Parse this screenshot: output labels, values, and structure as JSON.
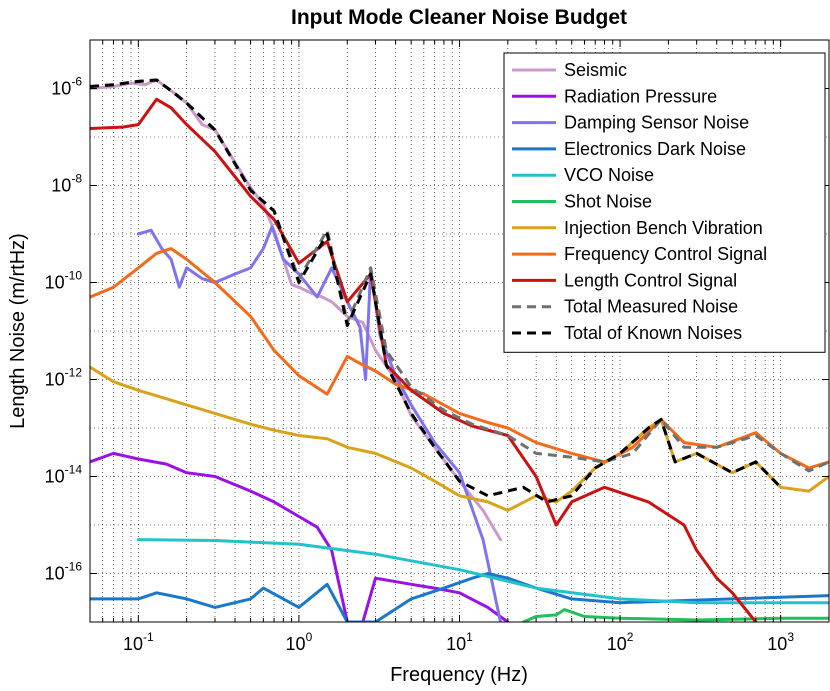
{
  "chart_data": {
    "type": "line",
    "title": "Input Mode Cleaner Noise Budget",
    "xlabel": "Frequency (Hz)",
    "ylabel": "Length Noise (m/rtHz)",
    "xscale": "log",
    "yscale": "log",
    "xlim": [
      0.05,
      2000
    ],
    "ylim": [
      1e-17,
      1e-05
    ],
    "grid": true,
    "legend_position": "top-right",
    "x_ticks": [
      {
        "base": "10",
        "exp": "-1",
        "value": 0.1
      },
      {
        "base": "10",
        "exp": "0",
        "value": 1
      },
      {
        "base": "10",
        "exp": "1",
        "value": 10
      },
      {
        "base": "10",
        "exp": "2",
        "value": 100
      },
      {
        "base": "10",
        "exp": "3",
        "value": 1000
      }
    ],
    "y_ticks": [
      {
        "base": "10",
        "exp": "-16",
        "value": 1e-16
      },
      {
        "base": "10",
        "exp": "-14",
        "value": 1e-14
      },
      {
        "base": "10",
        "exp": "-12",
        "value": 1e-12
      },
      {
        "base": "10",
        "exp": "-10",
        "value": 1e-10
      },
      {
        "base": "10",
        "exp": "-8",
        "value": 1e-08
      },
      {
        "base": "10",
        "exp": "-6",
        "value": 1e-06
      }
    ],
    "series": [
      {
        "name": "Seismic",
        "color": "#cc99cc",
        "dash": false,
        "points": [
          [
            0.05,
            1e-06
          ],
          [
            0.07,
            1.1e-06
          ],
          [
            0.09,
            1.3e-06
          ],
          [
            0.11,
            1.2e-06
          ],
          [
            0.13,
            1.5e-06
          ],
          [
            0.16,
            9e-07
          ],
          [
            0.2,
            5e-07
          ],
          [
            0.25,
            1.8e-07
          ],
          [
            0.3,
            1.4e-07
          ],
          [
            0.4,
            3e-08
          ],
          [
            0.5,
            9e-09
          ],
          [
            0.6,
            4e-09
          ],
          [
            0.7,
            1.2e-09
          ],
          [
            0.8,
            3e-10
          ],
          [
            0.9,
            9e-11
          ],
          [
            1.0,
            8e-11
          ],
          [
            1.2,
            6e-11
          ],
          [
            1.4,
            5e-11
          ],
          [
            1.6,
            4e-11
          ],
          [
            2.0,
            2e-11
          ],
          [
            2.5,
            1.5e-11
          ],
          [
            3.0,
            4e-12
          ],
          [
            4.0,
            1e-12
          ],
          [
            5.0,
            1.8e-13
          ],
          [
            7.0,
            4e-14
          ],
          [
            10.0,
            8e-15
          ],
          [
            14.0,
            2e-15
          ],
          [
            18.0,
            5e-16
          ]
        ]
      },
      {
        "name": "Radiation Pressure",
        "color": "#9a11e6",
        "dash": false,
        "points": [
          [
            0.05,
            2e-14
          ],
          [
            0.07,
            3e-14
          ],
          [
            0.1,
            2.3e-14
          ],
          [
            0.15,
            1.8e-14
          ],
          [
            0.2,
            1.2e-14
          ],
          [
            0.3,
            1e-14
          ],
          [
            0.5,
            5e-15
          ],
          [
            0.7,
            3e-15
          ],
          [
            1.0,
            1.5e-15
          ],
          [
            1.3,
            9e-16
          ],
          [
            1.6,
            3e-16
          ],
          [
            2.0,
            1e-17
          ],
          [
            2.5,
            1e-17
          ],
          [
            3.0,
            8e-17
          ],
          [
            5.0,
            6e-17
          ],
          [
            7.0,
            5e-17
          ],
          [
            10.0,
            4e-17
          ],
          [
            15.0,
            2e-17
          ],
          [
            20.0,
            1e-17
          ]
        ]
      },
      {
        "name": "Damping Sensor Noise",
        "color": "#8073f2",
        "dash": false,
        "points": [
          [
            0.1,
            1e-09
          ],
          [
            0.12,
            1.2e-09
          ],
          [
            0.14,
            5e-10
          ],
          [
            0.16,
            3e-10
          ],
          [
            0.18,
            8e-11
          ],
          [
            0.2,
            2e-10
          ],
          [
            0.25,
            1.2e-10
          ],
          [
            0.3,
            1e-10
          ],
          [
            0.4,
            1.5e-10
          ],
          [
            0.5,
            2e-10
          ],
          [
            0.6,
            5e-10
          ],
          [
            0.68,
            1.4e-09
          ],
          [
            0.8,
            3e-10
          ],
          [
            1.0,
            1.5e-10
          ],
          [
            1.3,
            5e-11
          ],
          [
            1.6,
            2e-10
          ],
          [
            2.0,
            4e-11
          ],
          [
            2.4,
            1.2e-11
          ],
          [
            2.6,
            1e-12
          ],
          [
            2.8,
            2e-10
          ],
          [
            3.2,
            8e-12
          ],
          [
            4.0,
            1.2e-12
          ],
          [
            5.0,
            3e-13
          ],
          [
            7.0,
            5e-14
          ],
          [
            10.0,
            1.2e-14
          ],
          [
            14.0,
            5e-16
          ],
          [
            18.0,
            1e-17
          ]
        ]
      },
      {
        "name": "Electronics Dark Noise",
        "color": "#1a78cc",
        "dash": false,
        "points": [
          [
            0.05,
            3e-17
          ],
          [
            0.1,
            3e-17
          ],
          [
            0.13,
            4e-17
          ],
          [
            0.2,
            3e-17
          ],
          [
            0.3,
            2e-17
          ],
          [
            0.5,
            3e-17
          ],
          [
            0.6,
            5e-17
          ],
          [
            0.8,
            3e-17
          ],
          [
            1.0,
            2e-17
          ],
          [
            1.5,
            6e-17
          ],
          [
            2.0,
            1e-17
          ],
          [
            3.0,
            1e-17
          ],
          [
            5.0,
            3e-17
          ],
          [
            8.0,
            5e-17
          ],
          [
            12.0,
            8e-17
          ],
          [
            15.0,
            1e-16
          ],
          [
            20.0,
            8e-17
          ],
          [
            30.0,
            5e-17
          ],
          [
            50.0,
            3e-17
          ],
          [
            100.0,
            2.5e-17
          ],
          [
            500.0,
            3e-17
          ],
          [
            2000.0,
            3.5e-17
          ]
        ]
      },
      {
        "name": "VCO Noise",
        "color": "#22c2cc",
        "dash": false,
        "points": [
          [
            0.1,
            5e-16
          ],
          [
            0.3,
            4.8e-16
          ],
          [
            1.0,
            4e-16
          ],
          [
            3.0,
            2.5e-16
          ],
          [
            10.0,
            1.2e-16
          ],
          [
            30.0,
            5e-17
          ],
          [
            100.0,
            3e-17
          ],
          [
            300.0,
            2.5e-17
          ],
          [
            2000.0,
            2.5e-17
          ]
        ]
      },
      {
        "name": "Shot Noise",
        "color": "#1fbf5a",
        "dash": false,
        "points": [
          [
            25.0,
            1e-17
          ],
          [
            30.0,
            1.3e-17
          ],
          [
            40.0,
            1.4e-17
          ],
          [
            45.0,
            1.8e-17
          ],
          [
            60.0,
            1.3e-17
          ],
          [
            100.0,
            1.2e-17
          ],
          [
            300.0,
            1.1e-17
          ],
          [
            1000.0,
            1.2e-17
          ],
          [
            2000.0,
            1.2e-17
          ]
        ]
      },
      {
        "name": "Injection Bench Vibration",
        "color": "#d9a21a",
        "dash": false,
        "points": [
          [
            0.05,
            1.8e-12
          ],
          [
            0.07,
            9e-13
          ],
          [
            0.1,
            6e-13
          ],
          [
            0.15,
            4e-13
          ],
          [
            0.2,
            3e-13
          ],
          [
            0.3,
            2e-13
          ],
          [
            0.5,
            1.2e-13
          ],
          [
            0.7,
            9e-14
          ],
          [
            1.0,
            7e-14
          ],
          [
            1.5,
            6e-14
          ],
          [
            2.0,
            4e-14
          ],
          [
            3.0,
            3e-14
          ],
          [
            5.0,
            1.5e-14
          ],
          [
            7.0,
            8e-15
          ],
          [
            10.0,
            4e-15
          ],
          [
            15.0,
            3e-15
          ],
          [
            20.0,
            2e-15
          ],
          [
            30.0,
            4e-15
          ],
          [
            40.0,
            3e-15
          ],
          [
            50.0,
            5e-15
          ],
          [
            70.0,
            1.5e-14
          ],
          [
            100.0,
            3e-14
          ],
          [
            150.0,
            1e-13
          ],
          [
            180.0,
            1.5e-13
          ],
          [
            220.0,
            2e-14
          ],
          [
            300.0,
            3e-14
          ],
          [
            500.0,
            1.2e-14
          ],
          [
            700.0,
            2e-14
          ],
          [
            1000.0,
            6e-15
          ],
          [
            1500.0,
            5e-15
          ],
          [
            2000.0,
            1e-14
          ]
        ]
      },
      {
        "name": "Frequency Control Signal",
        "color": "#f26a1a",
        "dash": false,
        "points": [
          [
            0.05,
            5e-11
          ],
          [
            0.07,
            8e-11
          ],
          [
            0.1,
            2e-10
          ],
          [
            0.13,
            4e-10
          ],
          [
            0.16,
            5e-10
          ],
          [
            0.2,
            3e-10
          ],
          [
            0.3,
            1e-10
          ],
          [
            0.5,
            2e-11
          ],
          [
            0.7,
            4e-12
          ],
          [
            1.0,
            1.2e-12
          ],
          [
            1.5,
            5e-13
          ],
          [
            2.0,
            3e-12
          ],
          [
            2.5,
            2e-12
          ],
          [
            3.0,
            1.5e-12
          ],
          [
            4.0,
            8e-13
          ],
          [
            6.0,
            5e-13
          ],
          [
            8.0,
            3e-13
          ],
          [
            10.0,
            2e-13
          ],
          [
            15.0,
            1.3e-13
          ],
          [
            20.0,
            1e-13
          ],
          [
            30.0,
            5e-14
          ],
          [
            50.0,
            3e-14
          ],
          [
            80.0,
            2e-14
          ],
          [
            120.0,
            4e-14
          ],
          [
            180.0,
            1.5e-13
          ],
          [
            250.0,
            5e-14
          ],
          [
            400.0,
            4e-14
          ],
          [
            700.0,
            8e-14
          ],
          [
            1000.0,
            3e-14
          ],
          [
            1500.0,
            1.5e-14
          ],
          [
            2000.0,
            2e-14
          ]
        ]
      },
      {
        "name": "Length Control Signal",
        "color": "#cc1111",
        "dash": false,
        "points": [
          [
            0.05,
            1.5e-07
          ],
          [
            0.08,
            1.6e-07
          ],
          [
            0.1,
            1.8e-07
          ],
          [
            0.13,
            6e-07
          ],
          [
            0.16,
            4e-07
          ],
          [
            0.2,
            1.8e-07
          ],
          [
            0.3,
            5e-08
          ],
          [
            0.5,
            6e-09
          ],
          [
            0.7,
            2e-09
          ],
          [
            1.0,
            2.5e-10
          ],
          [
            1.5,
            7e-10
          ],
          [
            2.0,
            4e-11
          ],
          [
            2.8,
            1.5e-10
          ],
          [
            3.5,
            2e-12
          ],
          [
            5.0,
            6e-13
          ],
          [
            8.0,
            2e-13
          ],
          [
            12.0,
            1.1e-13
          ],
          [
            20.0,
            7e-14
          ],
          [
            30.0,
            1e-14
          ],
          [
            40.0,
            1e-15
          ],
          [
            50.0,
            3e-15
          ],
          [
            80.0,
            6e-15
          ],
          [
            150.0,
            3e-15
          ],
          [
            250.0,
            1e-15
          ],
          [
            300.0,
            3e-16
          ],
          [
            400.0,
            8e-17
          ],
          [
            500.0,
            4e-17
          ],
          [
            700.0,
            1e-17
          ]
        ]
      },
      {
        "name": "Total Measured Noise",
        "color": "#707070",
        "dash": true,
        "points": [
          [
            0.05,
            1.1e-06
          ],
          [
            0.07,
            1.2e-06
          ],
          [
            0.1,
            1.4e-06
          ],
          [
            0.13,
            1.5e-06
          ],
          [
            0.16,
            9e-07
          ],
          [
            0.2,
            5e-07
          ],
          [
            0.3,
            1.4e-07
          ],
          [
            0.5,
            8e-09
          ],
          [
            0.7,
            3e-09
          ],
          [
            1.0,
            1.2e-10
          ],
          [
            1.5,
            1.2e-09
          ],
          [
            2.0,
            1.5e-11
          ],
          [
            2.8,
            2e-10
          ],
          [
            3.5,
            4e-12
          ],
          [
            5.0,
            7e-13
          ],
          [
            8.0,
            2.3e-13
          ],
          [
            12.0,
            1.2e-13
          ],
          [
            20.0,
            7e-14
          ],
          [
            30.0,
            3e-14
          ],
          [
            50.0,
            2.5e-14
          ],
          [
            80.0,
            2e-14
          ],
          [
            120.0,
            3e-14
          ],
          [
            180.0,
            1.5e-13
          ],
          [
            250.0,
            4e-14
          ],
          [
            400.0,
            4e-14
          ],
          [
            700.0,
            7e-14
          ],
          [
            1000.0,
            3e-14
          ],
          [
            1500.0,
            1.3e-14
          ],
          [
            2000.0,
            2e-14
          ]
        ]
      },
      {
        "name": "Total of Known Noises",
        "color": "#000000",
        "dash": true,
        "points": [
          [
            0.05,
            1.1e-06
          ],
          [
            0.07,
            1.2e-06
          ],
          [
            0.1,
            1.4e-06
          ],
          [
            0.13,
            1.5e-06
          ],
          [
            0.16,
            9e-07
          ],
          [
            0.2,
            5e-07
          ],
          [
            0.3,
            1.4e-07
          ],
          [
            0.5,
            8e-09
          ],
          [
            0.7,
            3e-09
          ],
          [
            1.0,
            1e-10
          ],
          [
            1.5,
            1e-09
          ],
          [
            2.0,
            1.3e-11
          ],
          [
            2.8,
            1.5e-10
          ],
          [
            3.5,
            2e-12
          ],
          [
            5.0,
            2e-13
          ],
          [
            7.0,
            4e-14
          ],
          [
            10.0,
            8e-15
          ],
          [
            15.0,
            4e-15
          ],
          [
            25.0,
            6e-15
          ],
          [
            35.0,
            3e-15
          ],
          [
            50.0,
            4e-15
          ],
          [
            70.0,
            1.5e-14
          ],
          [
            100.0,
            3e-14
          ],
          [
            150.0,
            1e-13
          ],
          [
            180.0,
            1.5e-13
          ],
          [
            220.0,
            2e-14
          ],
          [
            300.0,
            3e-14
          ],
          [
            500.0,
            1.2e-14
          ],
          [
            700.0,
            2e-14
          ],
          [
            1000.0,
            6e-15
          ]
        ]
      }
    ]
  }
}
